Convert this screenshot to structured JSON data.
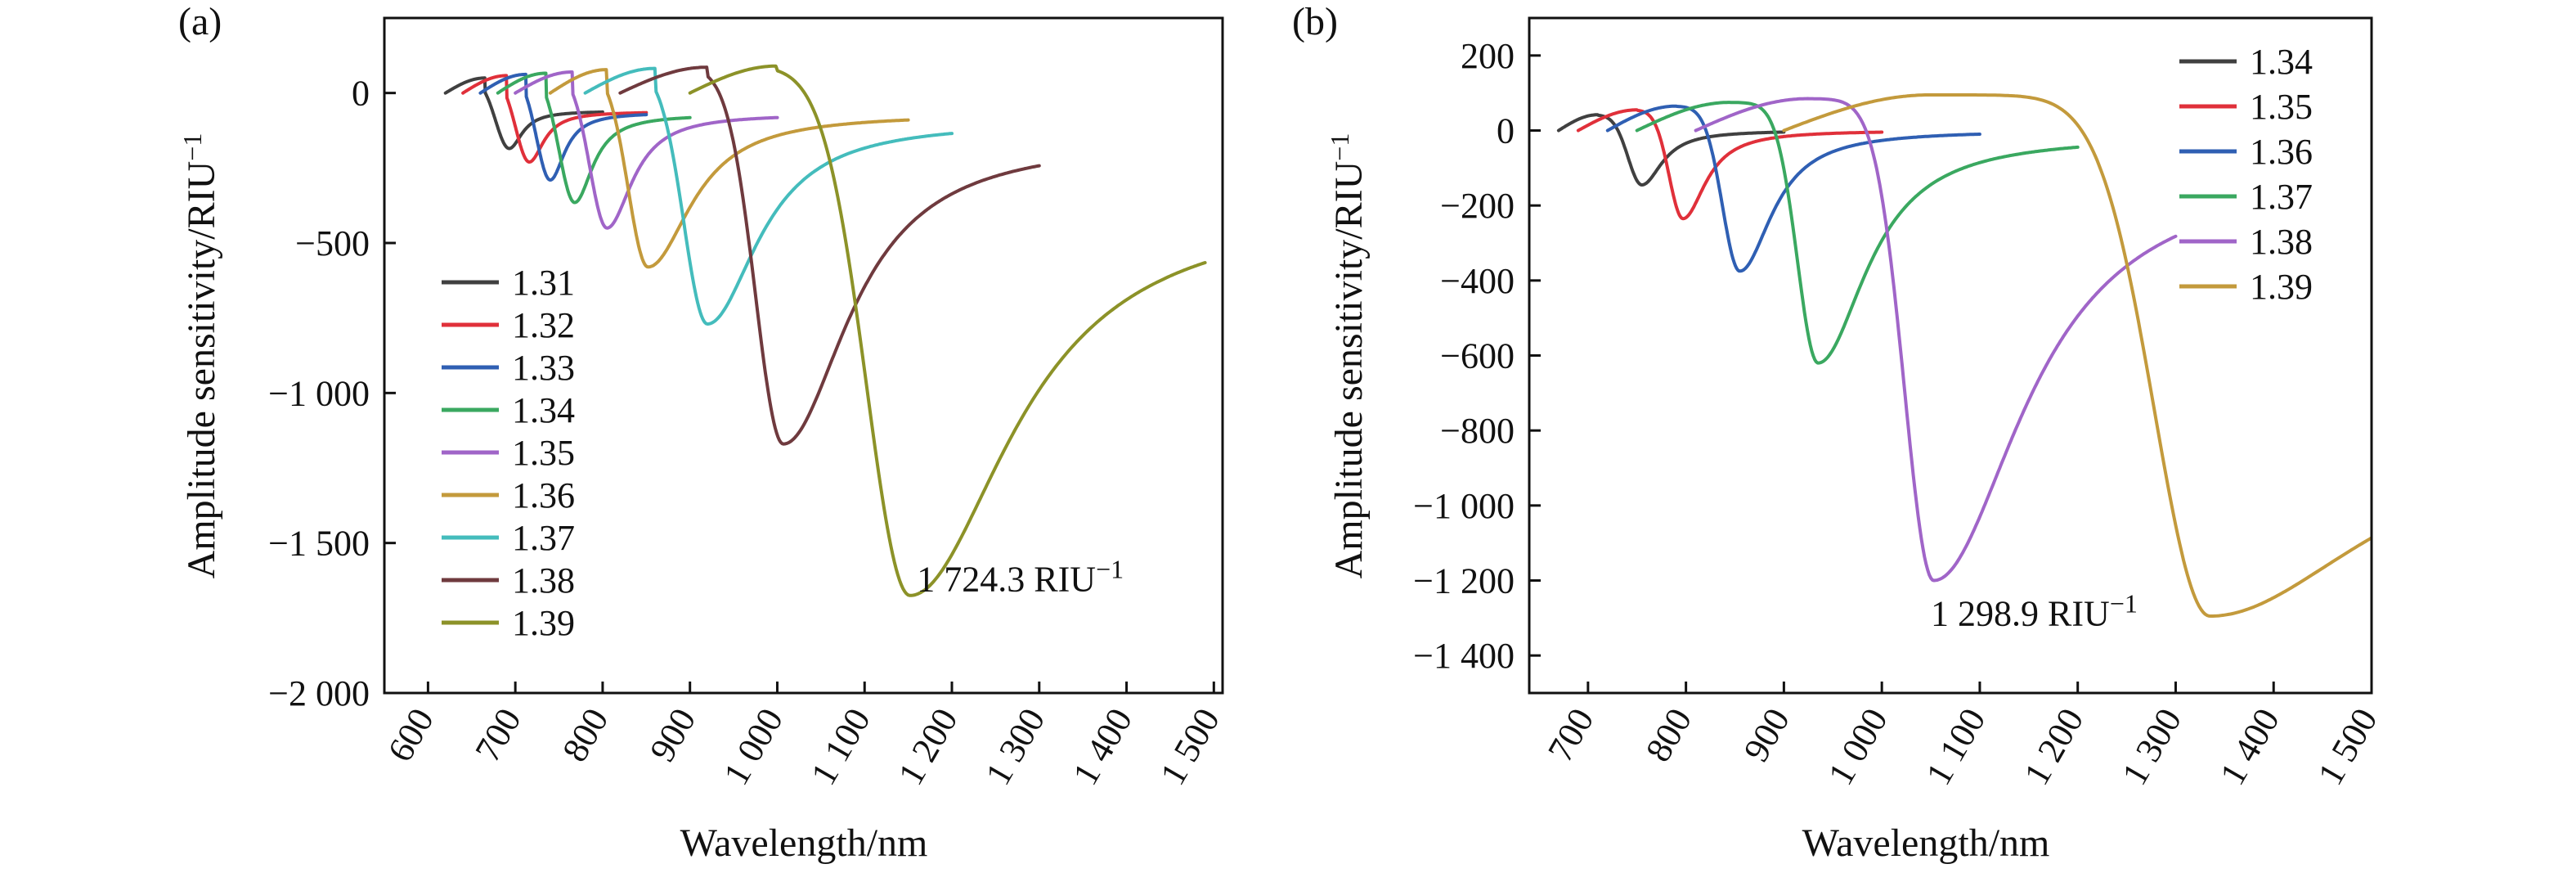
{
  "chart_data": [
    {
      "type": "line",
      "panel_label": "(a)",
      "xlabel": "Wavelength/nm",
      "ylabel": "Amplitude sensitivity/RIU",
      "ylabel_sup": "−1",
      "xlim": [
        550,
        1510
      ],
      "ylim": [
        -2000,
        250
      ],
      "xticks": [
        600,
        700,
        800,
        900,
        1000,
        1100,
        1200,
        1300,
        1400,
        1500
      ],
      "xtick_labels": [
        "600",
        "700",
        "800",
        "900",
        "1 000",
        "1 100",
        "1 200",
        "1 300",
        "1 400",
        "1 500"
      ],
      "yticks": [
        0,
        -500,
        -1000,
        -1500,
        -2000
      ],
      "ytick_labels": [
        "0",
        "−500",
        "−1 000",
        "−1 500",
        "−2 000"
      ],
      "annotation": {
        "text": "1 724.3 RIU",
        "sup": "−1",
        "x": 1160,
        "y": -1660
      },
      "legend_position": "bottom-left",
      "grid": false,
      "series": [
        {
          "name": "1.31",
          "color": "#404040",
          "start": 620,
          "end": 800,
          "peak_x": 665,
          "peak_y": 50,
          "dip_x": 693,
          "dip_y": -185,
          "end_y": -60,
          "w1": 22,
          "w2": 18
        },
        {
          "name": "1.32",
          "color": "#e0303a",
          "start": 640,
          "end": 850,
          "peak_x": 690,
          "peak_y": 58,
          "dip_x": 716,
          "dip_y": -230,
          "end_y": -62,
          "w1": 22,
          "w2": 20
        },
        {
          "name": "1.33",
          "color": "#2f5fb3",
          "start": 660,
          "end": 850,
          "peak_x": 712,
          "peak_y": 62,
          "dip_x": 740,
          "dip_y": -290,
          "end_y": -65,
          "w1": 22,
          "w2": 20
        },
        {
          "name": "1.34",
          "color": "#3aa860",
          "start": 680,
          "end": 900,
          "peak_x": 735,
          "peak_y": 66,
          "dip_x": 768,
          "dip_y": -365,
          "end_y": -72,
          "w1": 25,
          "w2": 25
        },
        {
          "name": "1.35",
          "color": "#a065c8",
          "start": 700,
          "end": 1000,
          "peak_x": 765,
          "peak_y": 70,
          "dip_x": 805,
          "dip_y": -450,
          "end_y": -70,
          "w1": 28,
          "w2": 35
        },
        {
          "name": "1.36",
          "color": "#c39a3c",
          "start": 740,
          "end": 1150,
          "peak_x": 805,
          "peak_y": 78,
          "dip_x": 852,
          "dip_y": -580,
          "end_y": -70,
          "w1": 32,
          "w2": 60
        },
        {
          "name": "1.37",
          "color": "#44bcbc",
          "start": 780,
          "end": 1200,
          "peak_x": 860,
          "peak_y": 82,
          "dip_x": 920,
          "dip_y": -770,
          "end_y": -95,
          "w1": 38,
          "w2": 70
        },
        {
          "name": "1.38",
          "color": "#6f3a3e",
          "start": 820,
          "end": 1300,
          "peak_x": 920,
          "peak_y": 86,
          "dip_x": 1007,
          "dip_y": -1170,
          "end_y": -155,
          "w1": 45,
          "w2": 90
        },
        {
          "name": "1.39",
          "color": "#8c9228",
          "start": 900,
          "end": 1490,
          "peak_x": 1000,
          "peak_y": 90,
          "dip_x": 1152,
          "dip_y": -1675,
          "end_y": -375,
          "w1": 70,
          "w2": 140
        }
      ]
    },
    {
      "type": "line",
      "panel_label": "(b)",
      "xlabel": "Wavelength/nm",
      "ylabel": "Amplitude sensitivity/RIU",
      "ylabel_sup": "−1",
      "xlim": [
        640,
        1500
      ],
      "ylim": [
        -1500,
        300
      ],
      "xticks": [
        700,
        800,
        900,
        1000,
        1100,
        1200,
        1300,
        1400,
        1500
      ],
      "xtick_labels": [
        "700",
        "800",
        "900",
        "1 000",
        "1 100",
        "1 200",
        "1 300",
        "1 400",
        "1 500"
      ],
      "yticks": [
        200,
        0,
        -200,
        -400,
        -600,
        -800,
        -1000,
        -1200,
        -1400
      ],
      "ytick_labels": [
        "200",
        "0",
        "−200",
        "−400",
        "−600",
        "−800",
        "−1 000",
        "−1 200",
        "−1 400"
      ],
      "annotation": {
        "text": "1 298.9 RIU",
        "sup": "−1",
        "x": 1050,
        "y": -1320
      },
      "legend_position": "top-right",
      "grid": false,
      "series": [
        {
          "name": "1.34",
          "color": "#404040",
          "start": 670,
          "end": 900,
          "peak_x": 710,
          "peak_y": 42,
          "dip_x": 755,
          "dip_y": -145,
          "end_y": 0,
          "w1": 20,
          "w2": 25
        },
        {
          "name": "1.35",
          "color": "#e0303a",
          "start": 690,
          "end": 1000,
          "peak_x": 750,
          "peak_y": 55,
          "dip_x": 797,
          "dip_y": -235,
          "end_y": 0,
          "w1": 20,
          "w2": 28
        },
        {
          "name": "1.36",
          "color": "#2f5fb3",
          "start": 720,
          "end": 1100,
          "peak_x": 790,
          "peak_y": 65,
          "dip_x": 855,
          "dip_y": -375,
          "end_y": 0,
          "w1": 25,
          "w2": 40
        },
        {
          "name": "1.37",
          "color": "#3aa860",
          "start": 750,
          "end": 1200,
          "peak_x": 845,
          "peak_y": 75,
          "dip_x": 935,
          "dip_y": -620,
          "end_y": -15,
          "w1": 30,
          "w2": 60
        },
        {
          "name": "1.38",
          "color": "#a065c8",
          "start": 810,
          "end": 1300,
          "peak_x": 925,
          "peak_y": 85,
          "dip_x": 1053,
          "dip_y": -1200,
          "end_y": -100,
          "w1": 42,
          "w2": 110
        },
        {
          "name": "1.39",
          "color": "#c39a3c",
          "start": 900,
          "end": 1500,
          "peak_x": 1050,
          "peak_y": 95,
          "dip_x": 1335,
          "dip_y": -1295,
          "end_y": -780,
          "w1": 80,
          "w2": 200
        }
      ]
    }
  ]
}
